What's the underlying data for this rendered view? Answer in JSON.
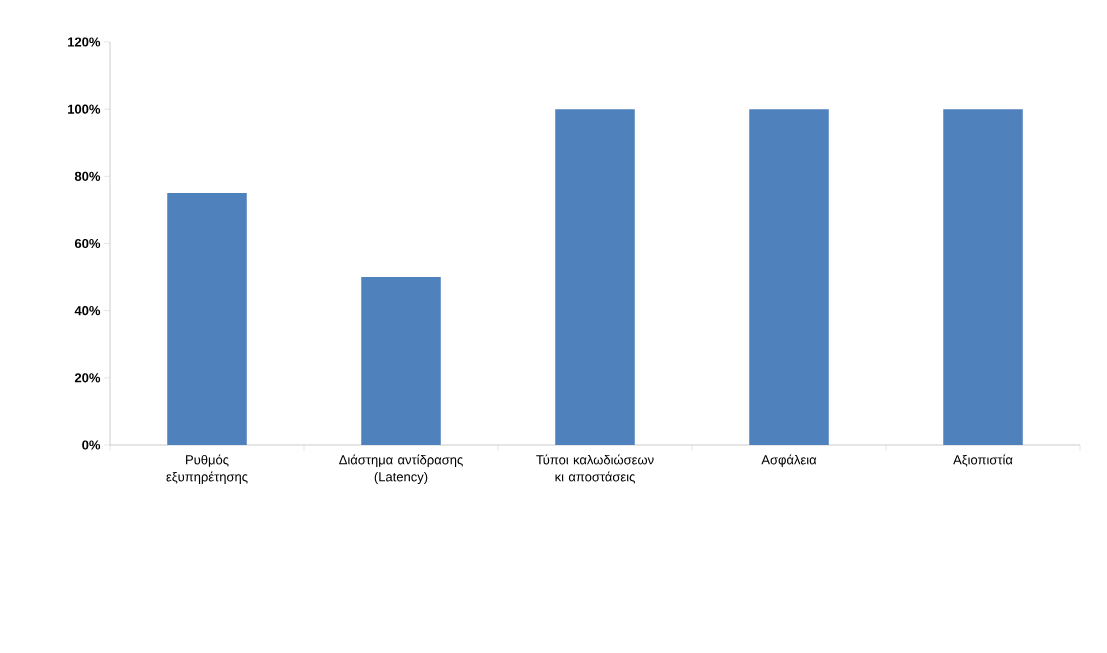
{
  "chart_data": {
    "type": "bar",
    "categories": [
      "Ρυθμός εξυπηρέτησης",
      "Διάστημα αντίδρασης (Latency)",
      "Τύποι καλωδιώσεων κι αποστάσεις",
      "Ασφάλεια",
      "Αξιοπιστία"
    ],
    "values": [
      75,
      50,
      100,
      100,
      100
    ],
    "color": "#4f81bd",
    "ylim": [
      0,
      120
    ],
    "yticks": [
      {
        "value": 0,
        "label": "0%"
      },
      {
        "value": 20,
        "label": "20%"
      },
      {
        "value": 40,
        "label": "40%"
      },
      {
        "value": 60,
        "label": "60%"
      },
      {
        "value": 80,
        "label": "80%"
      },
      {
        "value": 100,
        "label": "100%"
      },
      {
        "value": 120,
        "label": "120%"
      }
    ],
    "grid": false
  }
}
